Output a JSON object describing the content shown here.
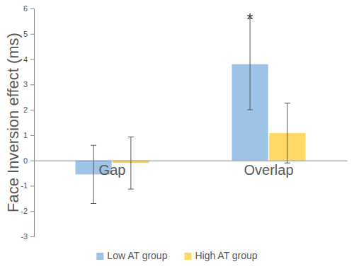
{
  "chart_data": {
    "type": "bar",
    "y_label": "Face Inversion effect (ms)",
    "categories": [
      "Gap",
      "Overlap"
    ],
    "series": [
      {
        "name": "Low AT group",
        "color": "#9dc3e6",
        "values": [
          -0.55,
          3.8
        ],
        "errors": [
          1.15,
          1.8
        ]
      },
      {
        "name": "High AT group",
        "color": "#ffd966",
        "values": [
          -0.1,
          1.08
        ],
        "errors": [
          1.03,
          1.18
        ]
      }
    ],
    "annotations": [
      {
        "text": "*",
        "category": "Overlap",
        "series": "Low AT group"
      }
    ],
    "ylim": [
      -3,
      6
    ],
    "yticks": [
      -3,
      -2,
      -1,
      0,
      1,
      2,
      3,
      4,
      5,
      6
    ],
    "grid": false,
    "legend": "bottom"
  }
}
